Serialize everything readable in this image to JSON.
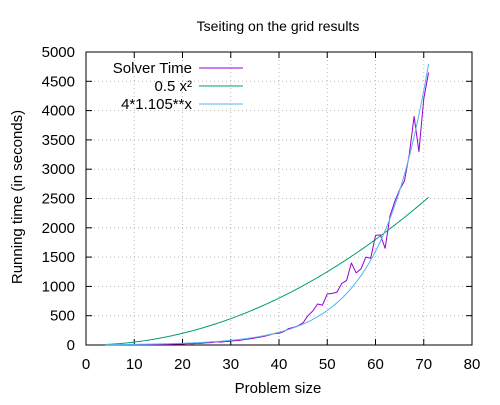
{
  "chart_data": {
    "type": "line",
    "title": "Tseiting on the grid results",
    "xlabel": "Problem size",
    "ylabel": "Running time (in seconds)",
    "xlim": [
      0,
      80
    ],
    "ylim": [
      0,
      5000
    ],
    "xticks": [
      0,
      10,
      20,
      30,
      40,
      50,
      60,
      70,
      80
    ],
    "yticks": [
      0,
      500,
      1000,
      1500,
      2000,
      2500,
      3000,
      3500,
      4000,
      4500,
      5000
    ],
    "grid": true,
    "legend_position": "top-left",
    "series": [
      {
        "name": "Solver Time",
        "color": "#9400d3",
        "points": [
          [
            4,
            0
          ],
          [
            6,
            1
          ],
          [
            8,
            2
          ],
          [
            10,
            3
          ],
          [
            12,
            5
          ],
          [
            14,
            7
          ],
          [
            16,
            10
          ],
          [
            18,
            14
          ],
          [
            19,
            20
          ],
          [
            20,
            15
          ],
          [
            21,
            25
          ],
          [
            22,
            22
          ],
          [
            23,
            28
          ],
          [
            24,
            30
          ],
          [
            25,
            38
          ],
          [
            26,
            40
          ],
          [
            27,
            55
          ],
          [
            28,
            50
          ],
          [
            29,
            60
          ],
          [
            30,
            65
          ],
          [
            31,
            75
          ],
          [
            32,
            80
          ],
          [
            33,
            95
          ],
          [
            34,
            105
          ],
          [
            35,
            120
          ],
          [
            36,
            135
          ],
          [
            37,
            150
          ],
          [
            38,
            170
          ],
          [
            39,
            195
          ],
          [
            40,
            200
          ],
          [
            41,
            230
          ],
          [
            42,
            280
          ],
          [
            43,
            300
          ],
          [
            44,
            330
          ],
          [
            45,
            380
          ],
          [
            46,
            500
          ],
          [
            47,
            580
          ],
          [
            48,
            700
          ],
          [
            49,
            680
          ],
          [
            50,
            870
          ],
          [
            51,
            880
          ],
          [
            52,
            900
          ],
          [
            53,
            1050
          ],
          [
            54,
            1100
          ],
          [
            55,
            1400
          ],
          [
            56,
            1230
          ],
          [
            57,
            1300
          ],
          [
            58,
            1500
          ],
          [
            59,
            1480
          ],
          [
            60,
            1870
          ],
          [
            61,
            1880
          ],
          [
            62,
            1650
          ],
          [
            63,
            2200
          ],
          [
            64,
            2450
          ],
          [
            65,
            2650
          ],
          [
            66,
            2800
          ],
          [
            67,
            3250
          ],
          [
            68,
            3900
          ],
          [
            69,
            3300
          ],
          [
            70,
            4200
          ],
          [
            71,
            4650
          ]
        ]
      },
      {
        "name": "0.5 x²",
        "color": "#009e73",
        "function": "0.5*x^2",
        "domain": [
          4,
          71
        ]
      },
      {
        "name": "4*1.105**x",
        "color": "#56b4e9",
        "function": "4*1.105^x",
        "domain": [
          4,
          71
        ]
      }
    ]
  }
}
